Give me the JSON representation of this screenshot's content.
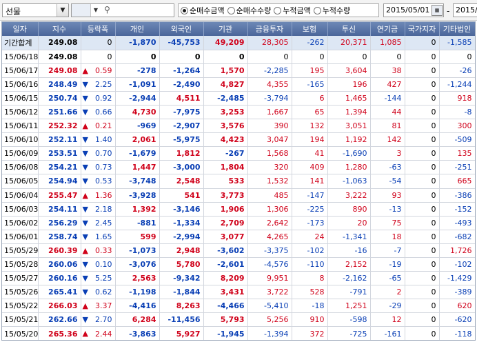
{
  "toolbar": {
    "market_select": "선물",
    "radio_options": [
      "순매수금액",
      "순매수수량",
      "누적금액",
      "누적수량"
    ],
    "selected_radio": 0,
    "start_date": "2015/05/01",
    "end_date": "2015/",
    "date_separator": "-"
  },
  "columns": [
    "일자",
    "지수",
    "등락폭",
    "개인",
    "외국인",
    "기관",
    "금융투자",
    "보험",
    "투신",
    "연기금",
    "국가지자",
    "기타법인"
  ],
  "colors": {
    "up": "#d0021b",
    "down": "#0a3fb5",
    "header": "#5a76a8",
    "summary_row": "#dde7f4"
  },
  "rows": [
    [
      "기간합계",
      "249.08",
      "",
      "0",
      "-1,870",
      "-45,753",
      "49,209",
      "28,305",
      "-262",
      "20,371",
      "1,085",
      "0",
      "-1,585"
    ],
    [
      "15/06/18",
      "249.08",
      "",
      "0",
      "0",
      "0",
      "0",
      "0",
      "0",
      "0",
      "0",
      "0",
      "0"
    ],
    [
      "15/06/17",
      "249.08",
      "up",
      "0.59",
      "-278",
      "-1,264",
      "1,570",
      "-2,285",
      "195",
      "3,604",
      "38",
      "0",
      "-26"
    ],
    [
      "15/06/16",
      "248.49",
      "dn",
      "2.25",
      "-1,091",
      "-2,490",
      "4,827",
      "4,355",
      "-165",
      "196",
      "427",
      "0",
      "-1,244"
    ],
    [
      "15/06/15",
      "250.74",
      "dn",
      "0.92",
      "-2,944",
      "4,511",
      "-2,485",
      "-3,794",
      "6",
      "1,465",
      "-144",
      "0",
      "918"
    ],
    [
      "15/06/12",
      "251.66",
      "dn",
      "0.66",
      "4,730",
      "-7,975",
      "3,253",
      "1,667",
      "65",
      "1,394",
      "44",
      "0",
      "-8"
    ],
    [
      "15/06/11",
      "252.32",
      "up",
      "0.21",
      "-969",
      "-2,907",
      "3,576",
      "390",
      "132",
      "3,051",
      "81",
      "0",
      "300"
    ],
    [
      "15/06/10",
      "252.11",
      "dn",
      "1.40",
      "2,061",
      "-5,975",
      "4,423",
      "3,047",
      "194",
      "1,192",
      "142",
      "0",
      "-509"
    ],
    [
      "15/06/09",
      "253.51",
      "dn",
      "0.70",
      "-1,679",
      "1,812",
      "-267",
      "1,568",
      "41",
      "-1,690",
      "3",
      "0",
      "135"
    ],
    [
      "15/06/08",
      "254.21",
      "dn",
      "0.73",
      "1,447",
      "-3,000",
      "1,804",
      "320",
      "409",
      "1,280",
      "-63",
      "0",
      "-251"
    ],
    [
      "15/06/05",
      "254.94",
      "dn",
      "0.53",
      "-3,748",
      "2,548",
      "533",
      "1,532",
      "141",
      "-1,063",
      "-54",
      "0",
      "665"
    ],
    [
      "15/06/04",
      "255.47",
      "up",
      "1.36",
      "-3,928",
      "541",
      "3,773",
      "485",
      "-147",
      "3,222",
      "93",
      "0",
      "-386"
    ],
    [
      "15/06/03",
      "254.11",
      "dn",
      "2.18",
      "1,392",
      "-3,146",
      "1,906",
      "1,306",
      "-225",
      "890",
      "-13",
      "0",
      "-152"
    ],
    [
      "15/06/02",
      "256.29",
      "dn",
      "2.45",
      "-881",
      "-1,334",
      "2,709",
      "2,642",
      "-173",
      "20",
      "75",
      "0",
      "-493"
    ],
    [
      "15/06/01",
      "258.74",
      "dn",
      "1.65",
      "599",
      "-2,994",
      "3,077",
      "4,265",
      "24",
      "-1,341",
      "18",
      "0",
      "-682"
    ],
    [
      "15/05/29",
      "260.39",
      "up",
      "0.33",
      "-1,073",
      "2,948",
      "-3,602",
      "-3,375",
      "-102",
      "-16",
      "-7",
      "0",
      "1,726"
    ],
    [
      "15/05/28",
      "260.06",
      "dn",
      "0.10",
      "-3,076",
      "5,780",
      "-2,601",
      "-4,576",
      "-110",
      "2,152",
      "-19",
      "0",
      "-102"
    ],
    [
      "15/05/27",
      "260.16",
      "dn",
      "5.25",
      "2,563",
      "-9,342",
      "8,209",
      "9,951",
      "8",
      "-2,162",
      "-65",
      "0",
      "-1,429"
    ],
    [
      "15/05/26",
      "265.41",
      "dn",
      "0.62",
      "-1,198",
      "-1,844",
      "3,431",
      "3,722",
      "528",
      "-791",
      "2",
      "0",
      "-389"
    ],
    [
      "15/05/22",
      "266.03",
      "up",
      "3.37",
      "-4,416",
      "8,263",
      "-4,466",
      "-5,410",
      "-18",
      "1,251",
      "-29",
      "0",
      "620"
    ],
    [
      "15/05/21",
      "262.66",
      "dn",
      "2.70",
      "6,284",
      "-11,456",
      "5,793",
      "5,256",
      "910",
      "-598",
      "12",
      "0",
      "-620"
    ],
    [
      "15/05/20",
      "265.36",
      "up",
      "2.44",
      "-3,863",
      "5,927",
      "-1,945",
      "-1,394",
      "372",
      "-725",
      "-161",
      "0",
      "-118"
    ]
  ]
}
